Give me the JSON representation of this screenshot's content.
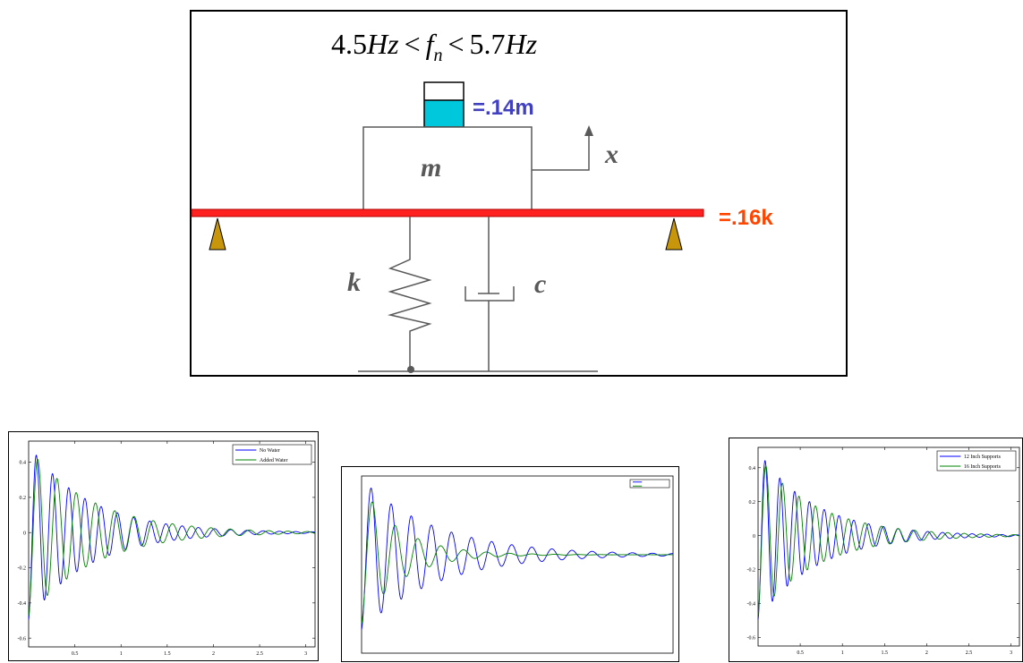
{
  "diagram": {
    "formula": {
      "lower": "4.5",
      "unit": "Hz",
      "lt": "<",
      "symbol": "f",
      "subscript": "n",
      "upper": "5.7"
    },
    "water_label": "=.14m",
    "mass_label": "m",
    "displacement_label": "x",
    "beam_label": "=.16k",
    "spring_label": "k",
    "damper_label": "c",
    "colors": {
      "beam": "#ff2020",
      "support": "#c8960a",
      "water": "#00c8dc",
      "water_label": "#4040c0",
      "beam_label": "#ff4500",
      "label": "#595959"
    }
  },
  "chart_data": [
    {
      "type": "line",
      "title": "",
      "xlabel": "",
      "ylabel": "",
      "xlim": [
        0,
        3.1
      ],
      "ylim": [
        -0.65,
        0.52
      ],
      "xticks": [
        0.5,
        1,
        1.5,
        2,
        2.5,
        3
      ],
      "xtick_labels": [
        "0.5",
        "1",
        "1.5",
        "2",
        "2.5",
        "3"
      ],
      "yticks": [
        -0.6,
        -0.4,
        -0.2,
        0,
        0.2,
        0.4
      ],
      "ytick_labels": [
        "-0.6",
        "-0.4",
        "-0.2",
        "0",
        "0.2",
        "0.4"
      ],
      "legend": "top-right",
      "series": [
        {
          "name": "No Water",
          "color": "#0000ff",
          "amplitude": 0.5,
          "frequency_hz": 5.7,
          "decay": 1.55
        },
        {
          "name": "Added Water",
          "color": "#008000",
          "amplitude": 0.48,
          "frequency_hz": 4.8,
          "decay": 1.45
        }
      ]
    },
    {
      "type": "line",
      "title": "",
      "xlabel": "",
      "ylabel": "",
      "xlim": [
        0,
        3.1
      ],
      "ylim": [
        -0.65,
        0.52
      ],
      "xticks": [],
      "xtick_labels": [],
      "yticks": [],
      "ytick_labels": [],
      "legend": "top-right",
      "series": [
        {
          "name": "",
          "color": "#0000ff",
          "amplitude": 0.5,
          "frequency_hz": 5.0,
          "decay": 1.35
        },
        {
          "name": "",
          "color": "#008000",
          "amplitude": 0.46,
          "frequency_hz": 4.4,
          "decay": 2.6
        }
      ]
    },
    {
      "type": "line",
      "title": "",
      "xlabel": "",
      "ylabel": "",
      "xlim": [
        0,
        3.1
      ],
      "ylim": [
        -0.65,
        0.52
      ],
      "xticks": [
        0.5,
        1,
        1.5,
        2,
        2.5,
        3
      ],
      "xtick_labels": [
        "0.5",
        "1",
        "1.5",
        "2",
        "2.5",
        "3"
      ],
      "yticks": [
        -0.6,
        -0.4,
        -0.2,
        0,
        0.2,
        0.4
      ],
      "ytick_labels": [
        "-0.6",
        "-0.4",
        "-0.2",
        "0",
        "0.2",
        "0.4"
      ],
      "legend": "top-right",
      "series": [
        {
          "name": "12 Inch Supports",
          "color": "#0000ff",
          "amplitude": 0.5,
          "frequency_hz": 5.7,
          "decay": 1.5
        },
        {
          "name": "16 Inch Supports",
          "color": "#008000",
          "amplitude": 0.47,
          "frequency_hz": 5.1,
          "decay": 1.45
        }
      ]
    }
  ]
}
